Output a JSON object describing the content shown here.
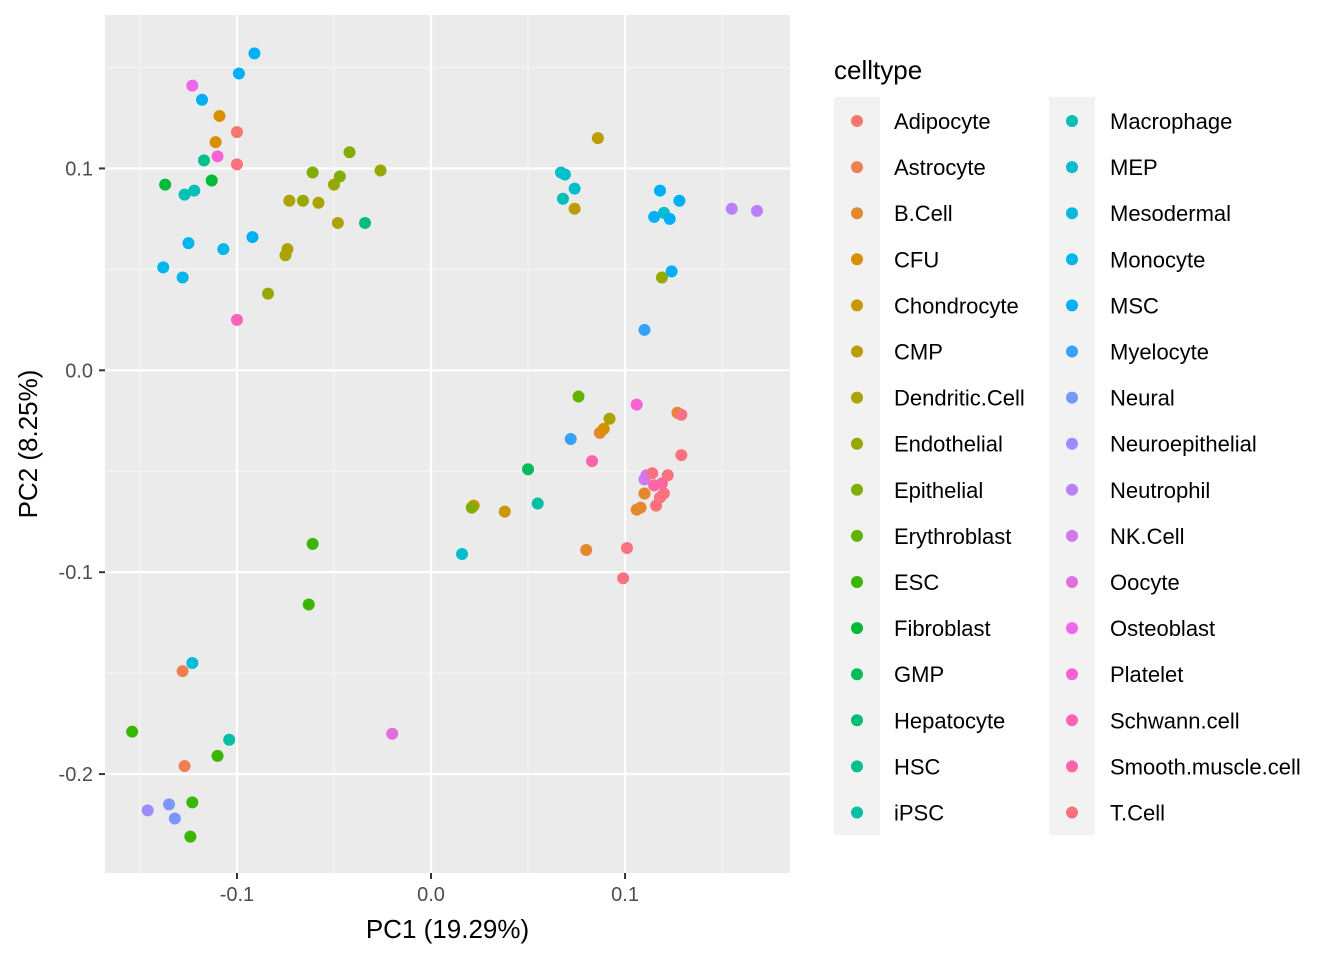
{
  "chart_data": {
    "type": "scatter",
    "xlabel": "PC1 (19.29%)",
    "ylabel": "PC2 (8.25%)",
    "xlim": [
      -0.168,
      0.185
    ],
    "ylim": [
      -0.249,
      0.176
    ],
    "x_ticks": [
      -0.1,
      0.0,
      0.1
    ],
    "x_tick_labels": [
      "-0.1",
      "0.0",
      "0.1"
    ],
    "y_ticks": [
      -0.2,
      -0.1,
      0.0,
      0.1
    ],
    "y_tick_labels": [
      "-0.2",
      "-0.1",
      "0.0",
      "0.1"
    ],
    "grid": true,
    "legend": {
      "title": "celltype",
      "position": "right",
      "columns": 2
    },
    "series": [
      {
        "name": "Adipocyte",
        "color": "#F8766D",
        "points": [
          [
            -0.1,
            0.118
          ]
        ]
      },
      {
        "name": "Astrocyte",
        "color": "#EE7F52",
        "points": [
          [
            -0.128,
            -0.149
          ],
          [
            -0.127,
            -0.196
          ]
        ]
      },
      {
        "name": "B.Cell",
        "color": "#E4882E",
        "points": [
          [
            0.08,
            -0.089
          ],
          [
            0.087,
            -0.031
          ],
          [
            0.11,
            -0.061
          ],
          [
            0.108,
            -0.068
          ],
          [
            0.106,
            -0.069
          ],
          [
            0.127,
            -0.021
          ]
        ]
      },
      {
        "name": "CFU",
        "color": "#D89000",
        "points": [
          [
            -0.109,
            0.126
          ],
          [
            -0.111,
            0.113
          ],
          [
            0.089,
            -0.029
          ]
        ]
      },
      {
        "name": "Chondrocyte",
        "color": "#CA9700",
        "points": [
          [
            0.022,
            -0.067
          ],
          [
            0.038,
            -0.07
          ]
        ]
      },
      {
        "name": "CMP",
        "color": "#BB9D00",
        "points": [
          [
            0.086,
            0.115
          ],
          [
            0.074,
            0.08
          ]
        ]
      },
      {
        "name": "Dendritic.Cell",
        "color": "#AAA300",
        "points": [
          [
            -0.073,
            0.084
          ],
          [
            -0.058,
            0.083
          ],
          [
            -0.048,
            0.073
          ],
          [
            -0.075,
            0.057
          ],
          [
            -0.074,
            0.06
          ],
          [
            0.092,
            -0.024
          ]
        ]
      },
      {
        "name": "Endothelial",
        "color": "#97A800",
        "points": [
          [
            -0.084,
            0.038
          ],
          [
            -0.066,
            0.084
          ],
          [
            -0.05,
            0.092
          ],
          [
            -0.026,
            0.099
          ],
          [
            0.119,
            0.046
          ]
        ]
      },
      {
        "name": "Epithelial",
        "color": "#80AD00",
        "points": [
          [
            -0.061,
            0.098
          ],
          [
            -0.047,
            0.096
          ],
          [
            -0.042,
            0.108
          ],
          [
            0.021,
            -0.068
          ]
        ]
      },
      {
        "name": "Erythroblast",
        "color": "#63B200",
        "points": [
          [
            0.076,
            -0.013
          ]
        ]
      },
      {
        "name": "ESC",
        "color": "#39B600",
        "points": [
          [
            -0.154,
            -0.179
          ],
          [
            -0.123,
            -0.214
          ],
          [
            -0.11,
            -0.191
          ],
          [
            -0.124,
            -0.231
          ],
          [
            -0.061,
            -0.086
          ],
          [
            -0.063,
            -0.116
          ]
        ]
      },
      {
        "name": "Fibroblast",
        "color": "#00BA38",
        "points": [
          [
            -0.137,
            0.092
          ],
          [
            -0.113,
            0.094
          ]
        ]
      },
      {
        "name": "GMP",
        "color": "#00BC59",
        "points": [
          [
            0.05,
            -0.049
          ]
        ]
      },
      {
        "name": "Hepatocyte",
        "color": "#00BE76",
        "points": [
          [
            -0.034,
            0.073
          ]
        ]
      },
      {
        "name": "HSC",
        "color": "#00C08E",
        "points": [
          [
            -0.117,
            0.104
          ]
        ]
      },
      {
        "name": "iPSC",
        "color": "#00C0A4",
        "points": [
          [
            -0.104,
            -0.183
          ],
          [
            0.055,
            -0.066
          ]
        ]
      },
      {
        "name": "Macrophage",
        "color": "#00C0B8",
        "points": [
          [
            -0.127,
            0.087
          ],
          [
            -0.122,
            0.089
          ],
          [
            0.068,
            0.085
          ]
        ]
      },
      {
        "name": "MEP",
        "color": "#00BECB",
        "points": [
          [
            0.067,
            0.098
          ],
          [
            0.069,
            0.097
          ],
          [
            0.074,
            0.09
          ],
          [
            0.12,
            0.078
          ],
          [
            0.016,
            -0.091
          ]
        ]
      },
      {
        "name": "Mesodermal",
        "color": "#00BBDB",
        "points": [
          [
            -0.123,
            -0.145
          ]
        ]
      },
      {
        "name": "Monocyte",
        "color": "#00B6EA",
        "points": [
          [
            -0.138,
            0.051
          ],
          [
            -0.128,
            0.046
          ],
          [
            -0.125,
            0.063
          ],
          [
            -0.107,
            0.06
          ]
        ]
      },
      {
        "name": "MSC",
        "color": "#00B0F6",
        "points": [
          [
            -0.091,
            0.157
          ],
          [
            -0.099,
            0.147
          ],
          [
            -0.118,
            0.134
          ],
          [
            -0.092,
            0.066
          ],
          [
            0.118,
            0.089
          ],
          [
            0.128,
            0.084
          ],
          [
            0.115,
            0.076
          ],
          [
            0.123,
            0.075
          ],
          [
            0.124,
            0.049
          ]
        ]
      },
      {
        "name": "Myelocyte",
        "color": "#35A2FF",
        "points": [
          [
            0.11,
            0.02
          ],
          [
            0.072,
            -0.034
          ]
        ]
      },
      {
        "name": "Neural",
        "color": "#7997FF",
        "points": [
          [
            -0.135,
            -0.215
          ],
          [
            -0.132,
            -0.222
          ]
        ]
      },
      {
        "name": "Neuroepithelial",
        "color": "#9E8CFF",
        "points": [
          [
            -0.146,
            -0.218
          ]
        ]
      },
      {
        "name": "Neutrophil",
        "color": "#BA81F6",
        "points": [
          [
            0.155,
            0.08
          ],
          [
            0.168,
            0.079
          ]
        ]
      },
      {
        "name": "NK.Cell",
        "color": "#D079EA",
        "points": [
          [
            0.111,
            -0.052
          ],
          [
            0.11,
            -0.054
          ]
        ]
      },
      {
        "name": "Oocyte",
        "color": "#E16FDB",
        "points": [
          [
            -0.02,
            -0.18
          ]
        ]
      },
      {
        "name": "Osteoblast",
        "color": "#ED68ED",
        "points": [
          [
            -0.123,
            0.141
          ]
        ]
      },
      {
        "name": "Platelet",
        "color": "#FB61D7",
        "points": [
          [
            -0.11,
            0.106
          ],
          [
            0.106,
            -0.017
          ]
        ]
      },
      {
        "name": "Schwann.cell",
        "color": "#FF62BC",
        "points": [
          [
            -0.1,
            0.025
          ]
        ]
      },
      {
        "name": "Smooth.muscle.cell",
        "color": "#FF65A6",
        "points": [
          [
            0.083,
            -0.045
          ],
          [
            0.115,
            -0.057
          ],
          [
            0.119,
            -0.056
          ]
        ]
      },
      {
        "name": "T.Cell",
        "color": "#FC717F",
        "points": [
          [
            -0.1,
            0.102
          ],
          [
            0.099,
            -0.103
          ],
          [
            0.101,
            -0.088
          ],
          [
            0.114,
            -0.051
          ],
          [
            0.116,
            -0.067
          ],
          [
            0.118,
            -0.063
          ],
          [
            0.12,
            -0.061
          ],
          [
            0.122,
            -0.052
          ],
          [
            0.129,
            -0.042
          ],
          [
            0.129,
            -0.022
          ]
        ]
      }
    ]
  }
}
